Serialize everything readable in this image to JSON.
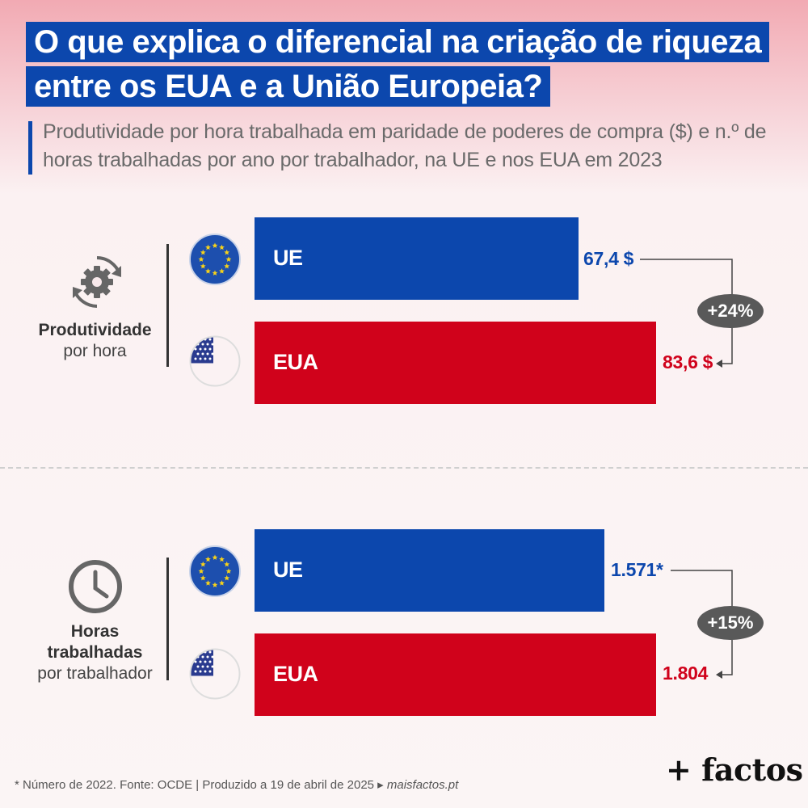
{
  "title": {
    "line1": "O que explica o diferencial na criação de riqueza",
    "line2": "entre os EUA e a União Europeia?"
  },
  "subtitle": "Produtividade por hora trabalhada em paridade de poderes de compra ($) e n.º de horas trabalhadas por ano por trabalhador, na UE e nos EUA em 2023",
  "colors": {
    "ue": "#0c47ad",
    "eua": "#d0021b",
    "badge": "#595959"
  },
  "sections": [
    {
      "icon": "gear-cycle-icon",
      "label_bold": "Produtividade",
      "label_rest": [
        "por hora"
      ]
    },
    {
      "icon": "clock-icon",
      "label_bold": [
        "Horas",
        "trabalhadas"
      ],
      "label_rest": [
        "por trabalhador"
      ]
    }
  ],
  "chart_data": [
    {
      "type": "bar",
      "orientation": "horizontal",
      "categories": [
        "UE",
        "EUA"
      ],
      "values": [
        67.4,
        83.6
      ],
      "value_labels": [
        "67,4 $",
        "83,6 $"
      ],
      "difference_label": "+24%"
    },
    {
      "type": "bar",
      "orientation": "horizontal",
      "categories": [
        "UE",
        "EUA"
      ],
      "values": [
        1571,
        1804
      ],
      "value_labels": [
        "1.571*",
        "1.804"
      ],
      "difference_label": "+15%"
    }
  ],
  "footnote": {
    "text": "* Número de 2022. Fonte: OCDE  |  Produzido a 19 de abril de 2025 ▸ ",
    "site": "maisfactos.pt"
  },
  "logo": "+ factos"
}
